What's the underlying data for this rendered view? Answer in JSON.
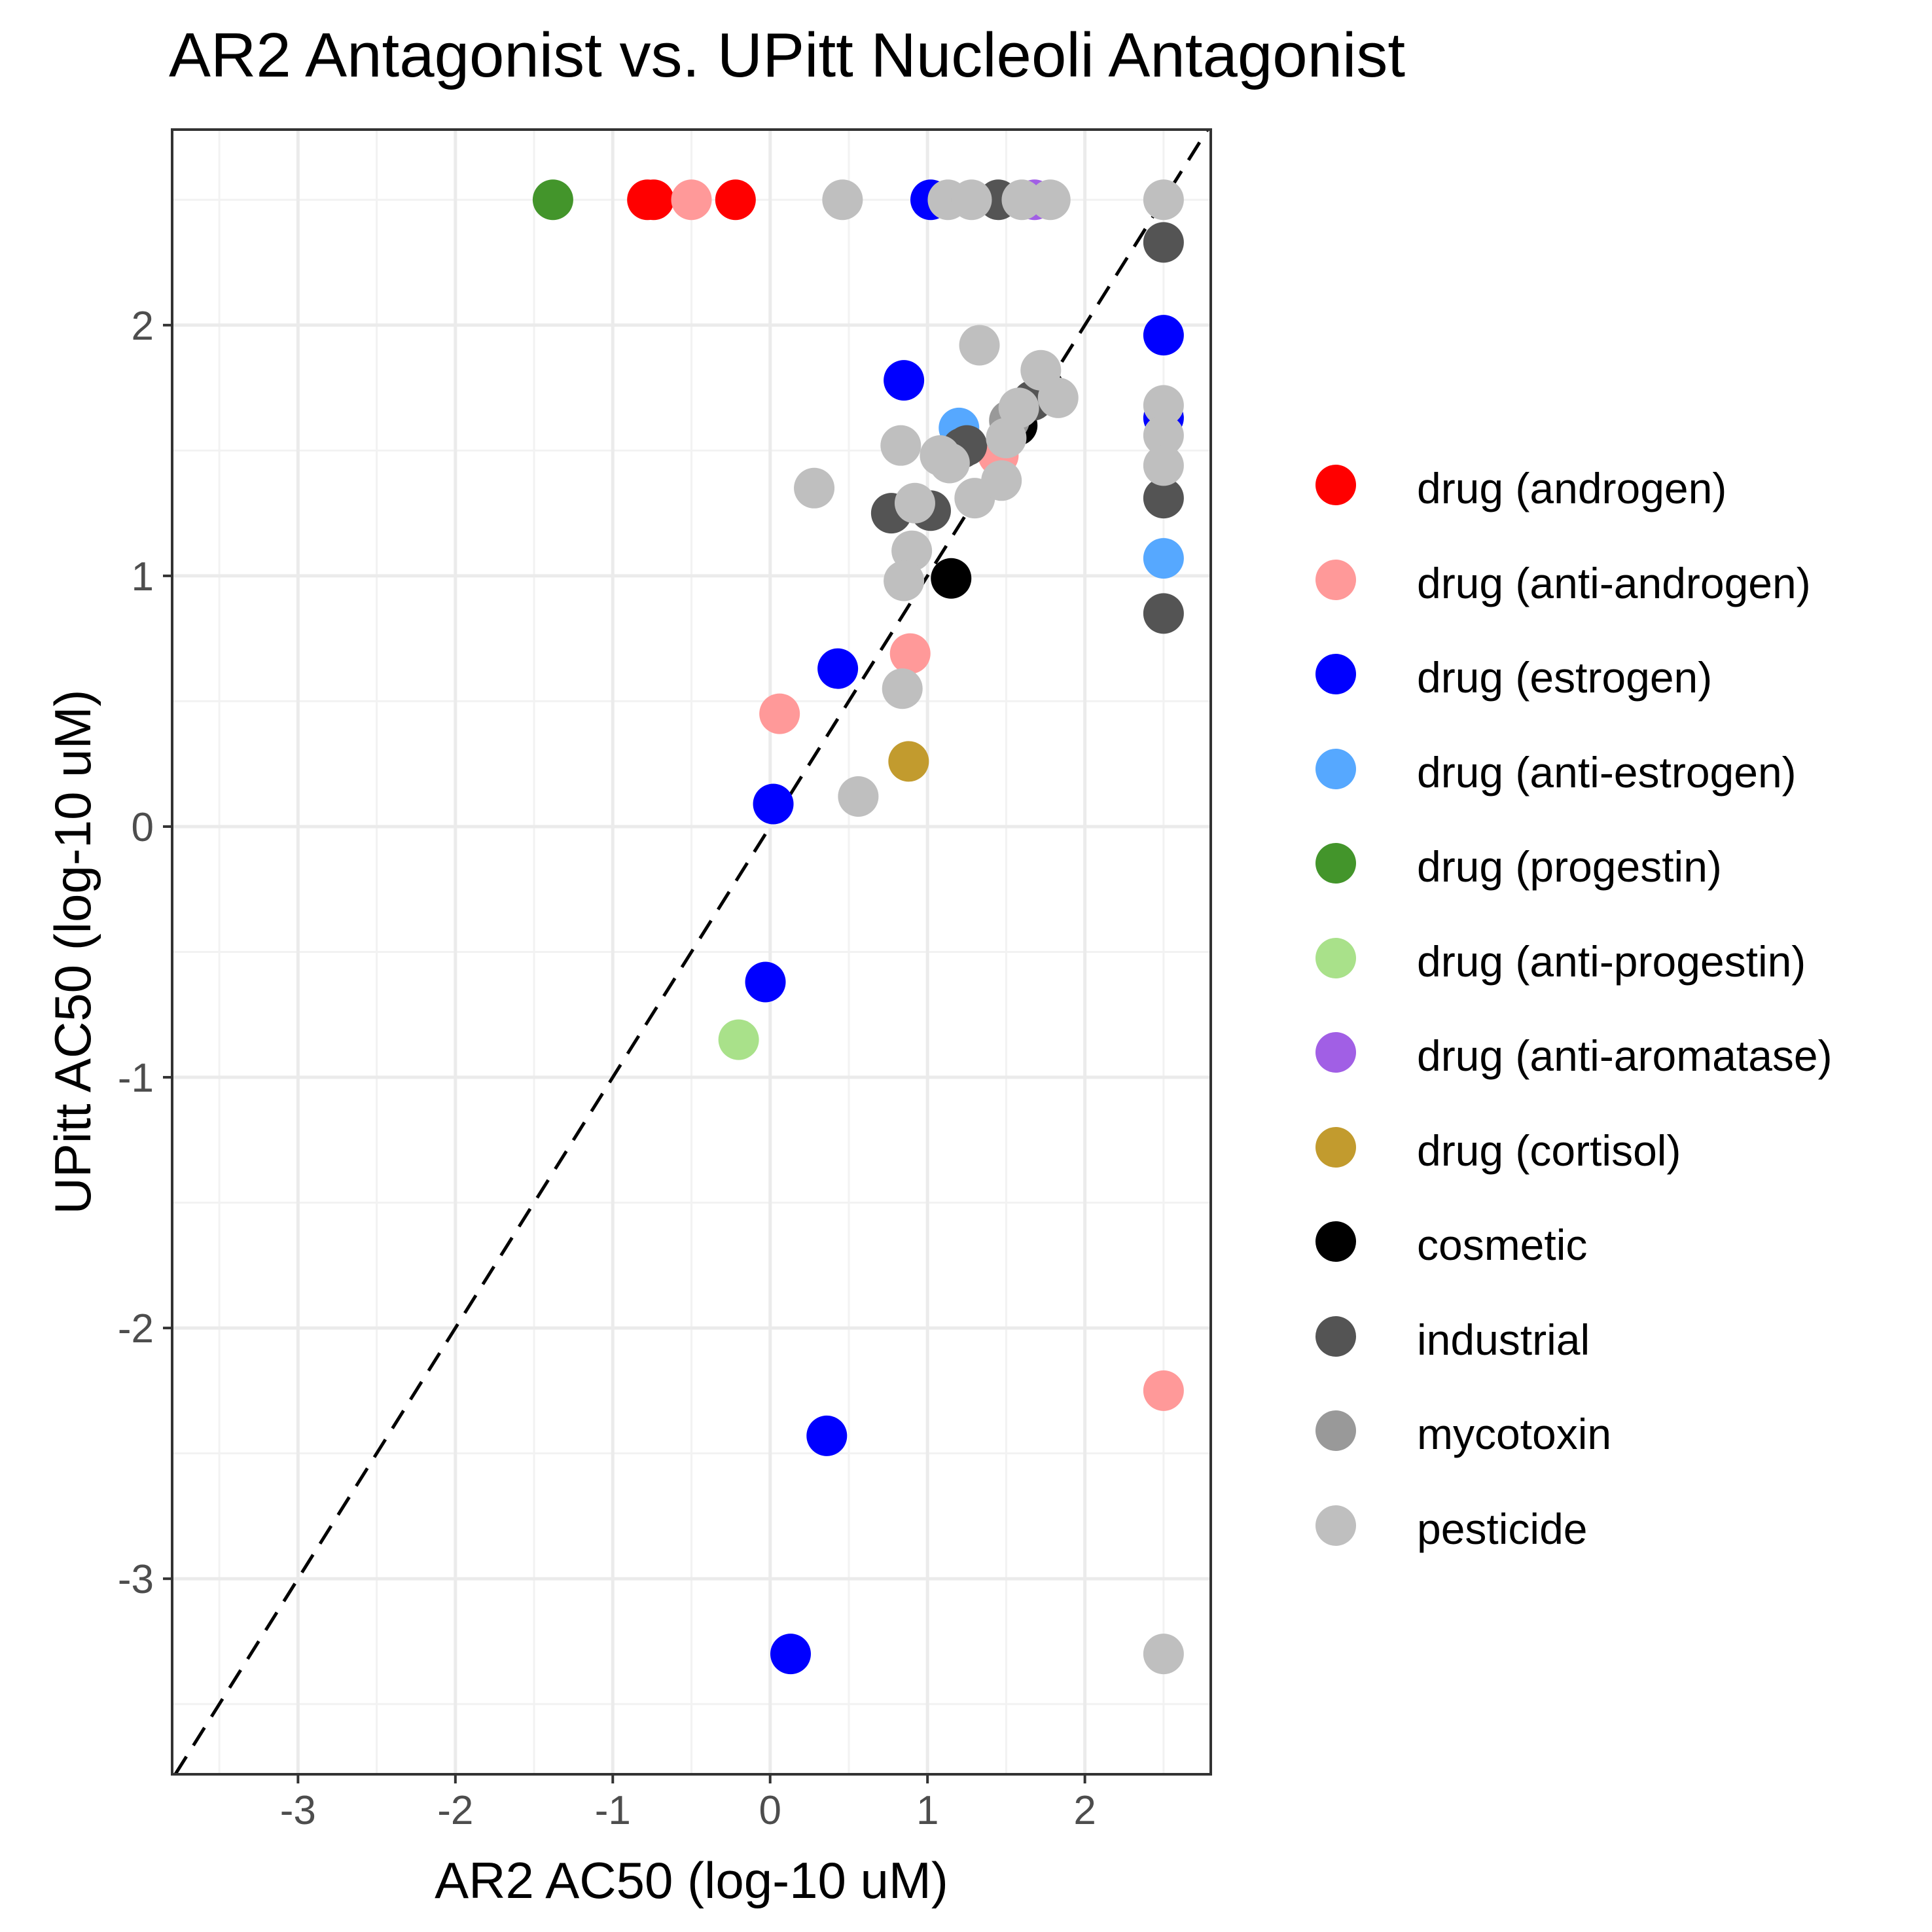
{
  "chart_data": {
    "type": "scatter",
    "title": "AR2 Antagonist vs. UPitt Nucleoli Antagonist",
    "xlabel": "AR2 AC50 (log-10 uM)",
    "ylabel": "UPitt AC50 (log-10 uM)",
    "xlim": [
      -3.8,
      2.8
    ],
    "ylim": [
      -3.78,
      2.78
    ],
    "xticks": [
      -3,
      -2,
      -1,
      0,
      1,
      2
    ],
    "yticks": [
      -3,
      -2,
      -1,
      0,
      1,
      2
    ],
    "grid": true,
    "reference_line": "y = x (dashed)",
    "legend_position": "right",
    "series": [
      {
        "name": "drug (androgen)",
        "color": "#FF0000",
        "points": [
          [
            -0.78,
            2.5
          ],
          [
            -0.74,
            2.5
          ],
          [
            -0.22,
            2.5
          ]
        ]
      },
      {
        "name": "drug (anti-androgen)",
        "color": "#FF9999",
        "points": [
          [
            -0.5,
            2.5
          ],
          [
            0.06,
            0.45
          ],
          [
            0.89,
            0.69
          ],
          [
            2.5,
            -2.25
          ],
          [
            1.45,
            1.48
          ]
        ]
      },
      {
        "name": "drug (estrogen)",
        "color": "#0000FF",
        "points": [
          [
            1.02,
            2.5
          ],
          [
            2.5,
            1.96
          ],
          [
            2.5,
            1.63
          ],
          [
            0.85,
            1.78
          ],
          [
            0.43,
            0.63
          ],
          [
            0.02,
            0.09
          ],
          [
            -0.03,
            -0.62
          ],
          [
            0.36,
            -2.43
          ],
          [
            0.13,
            -3.3
          ]
        ]
      },
      {
        "name": "drug (anti-estrogen)",
        "color": "#56A8FF",
        "points": [
          [
            1.2,
            1.59
          ],
          [
            2.5,
            1.07
          ]
        ]
      },
      {
        "name": "drug (progestin)",
        "color": "#43952B",
        "points": [
          [
            -1.38,
            2.5
          ]
        ]
      },
      {
        "name": "drug (anti-progestin)",
        "color": "#A9E18A",
        "points": [
          [
            -0.2,
            -0.85
          ]
        ]
      },
      {
        "name": "drug (anti-aromatase)",
        "color": "#A15FE5",
        "points": [
          [
            1.68,
            2.5
          ]
        ]
      },
      {
        "name": "drug (cortisol)",
        "color": "#C29B2E",
        "points": [
          [
            0.88,
            0.26
          ]
        ]
      },
      {
        "name": "cosmetic",
        "color": "#000000",
        "points": [
          [
            1.74,
            1.75
          ],
          [
            1.57,
            1.6
          ],
          [
            1.15,
            0.99
          ]
        ]
      },
      {
        "name": "industrial",
        "color": "#545454",
        "points": [
          [
            1.45,
            2.5
          ],
          [
            2.5,
            2.33
          ],
          [
            2.5,
            1.31
          ],
          [
            2.5,
            0.85
          ],
          [
            0.77,
            1.25
          ],
          [
            1.02,
            1.26
          ],
          [
            1.22,
            1.51
          ],
          [
            1.25,
            1.52
          ],
          [
            1.67,
            1.7
          ]
        ]
      },
      {
        "name": "mycotoxin",
        "color": "#999999",
        "points": [
          [
            1.52,
            1.62
          ]
        ]
      },
      {
        "name": "pesticide",
        "color": "#BFBFBF",
        "points": [
          [
            0.46,
            2.5
          ],
          [
            1.13,
            2.5
          ],
          [
            1.28,
            2.5
          ],
          [
            1.6,
            2.5
          ],
          [
            1.78,
            2.5
          ],
          [
            2.5,
            2.5
          ],
          [
            1.33,
            1.92
          ],
          [
            1.72,
            1.82
          ],
          [
            1.83,
            1.71
          ],
          [
            1.58,
            1.67
          ],
          [
            1.5,
            1.55
          ],
          [
            2.5,
            1.68
          ],
          [
            2.5,
            1.56
          ],
          [
            2.5,
            1.44
          ],
          [
            0.83,
            1.52
          ],
          [
            1.08,
            1.48
          ],
          [
            1.14,
            1.45
          ],
          [
            1.3,
            1.31
          ],
          [
            1.47,
            1.38
          ],
          [
            0.28,
            1.35
          ],
          [
            0.92,
            1.29
          ],
          [
            0.9,
            1.1
          ],
          [
            0.85,
            0.98
          ],
          [
            0.84,
            0.55
          ],
          [
            0.56,
            0.12
          ],
          [
            2.5,
            -3.3
          ]
        ]
      }
    ]
  }
}
